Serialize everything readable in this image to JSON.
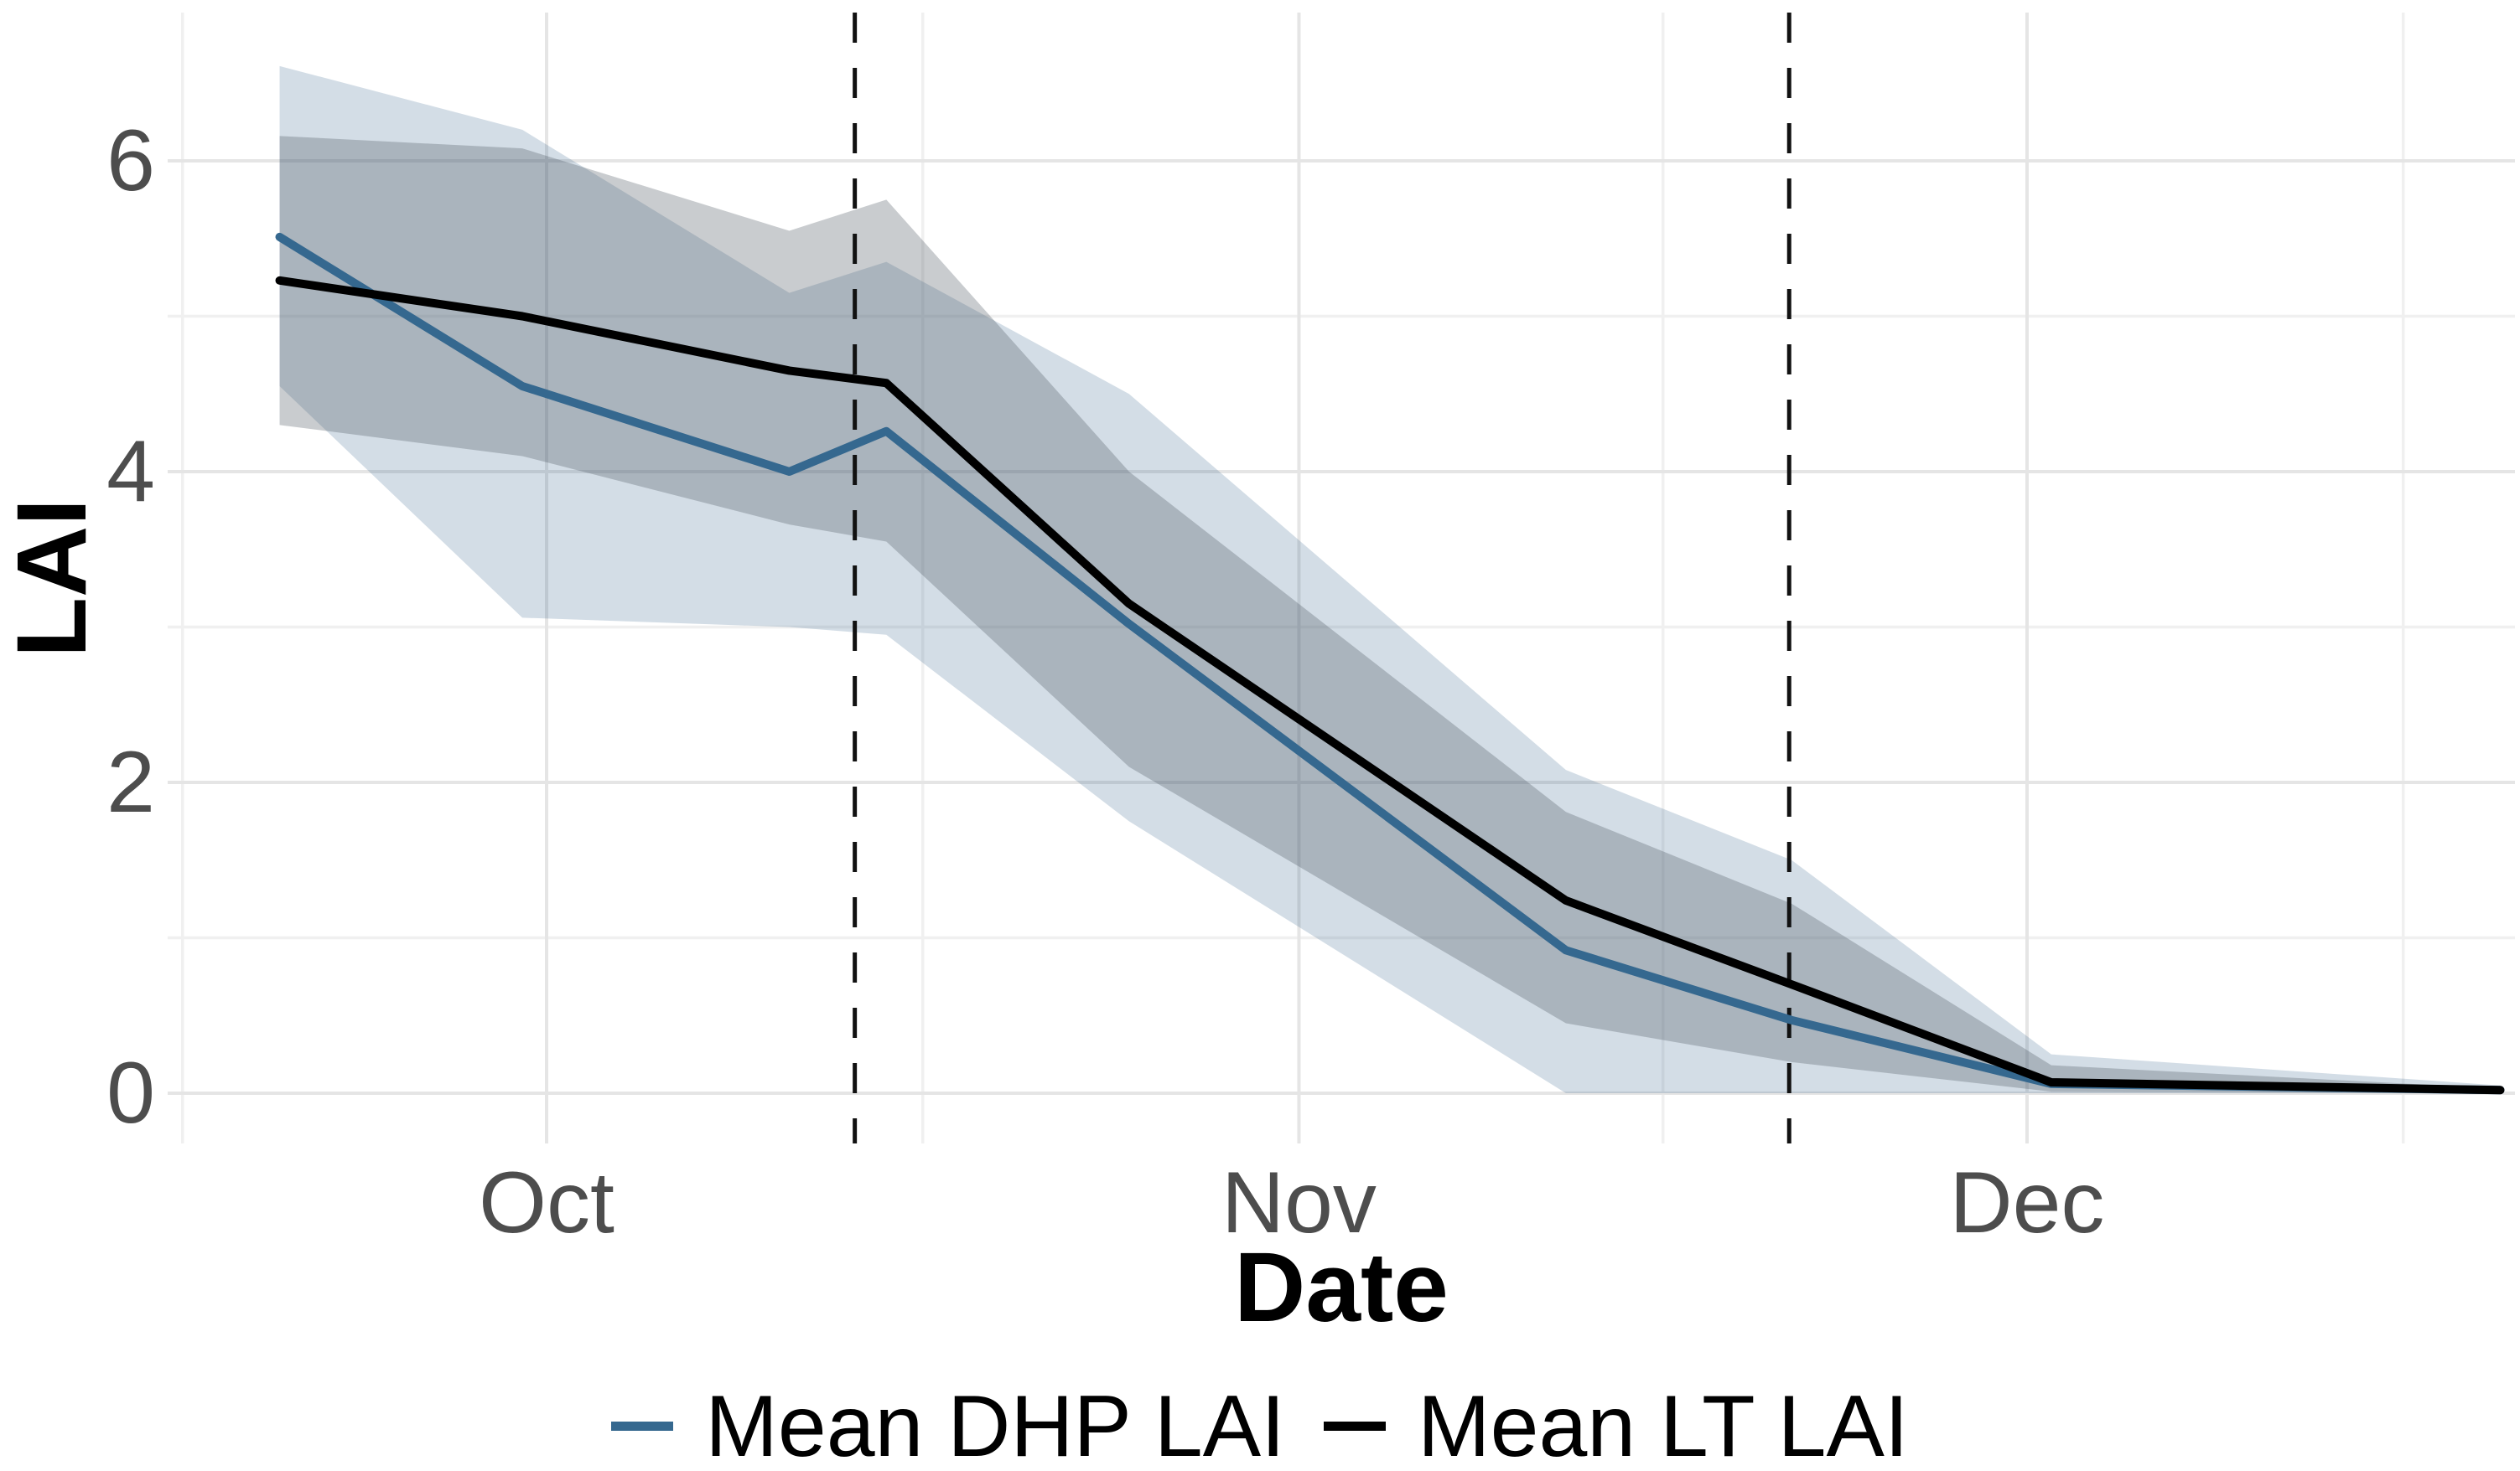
{
  "figure": {
    "background": "#FFFFFF"
  },
  "axes": {
    "tick_color": "#4D4D4D",
    "title_color": "#000000",
    "grid_major_color": "#E5E5E5",
    "grid_minor_color": "#F0F0F0",
    "dashed_line_color": "#111111"
  },
  "chart_data": {
    "type": "line",
    "title": "",
    "xlabel": "Date",
    "ylabel": "LAI",
    "x_axis": {
      "unit": "days relative to Oct 1",
      "ticks": [
        {
          "label": "Oct",
          "d": 0
        },
        {
          "label": "Nov",
          "d": 31
        },
        {
          "label": "Dec",
          "d": 61
        }
      ],
      "minor_d": [
        -15,
        15.5,
        46,
        76.5
      ],
      "range_d": [
        -15.6,
        81.1
      ]
    },
    "y_axis": {
      "ticks": [
        0,
        2,
        4,
        6
      ],
      "minor": [
        1,
        3,
        5
      ],
      "range": [
        -0.32,
        6.95
      ]
    },
    "grid": true,
    "legend_position": "bottom",
    "vertical_dashed_lines_d": [
      12.7,
      51.2
    ],
    "points_d": [
      -11,
      -1,
      10,
      14,
      24,
      42,
      51.3,
      62,
      80.5
    ],
    "series": [
      {
        "name": "Mean DHP LAI",
        "color": "#35688F",
        "band_color": "rgba(55,100,140,0.22)",
        "values": [
          5.51,
          4.55,
          4.0,
          4.26,
          3.02,
          0.92,
          0.47,
          0.06,
          0.02
        ],
        "band_lower": [
          4.55,
          3.06,
          3.0,
          2.95,
          1.75,
          0.0,
          0.0,
          0.0,
          0.0
        ],
        "band_upper": [
          6.61,
          6.2,
          5.15,
          5.35,
          4.5,
          2.08,
          1.5,
          0.25,
          0.05
        ]
      },
      {
        "name": "Mean LT LAI",
        "color": "#000000",
        "band_color": "rgba(75,85,95,0.30)",
        "values": [
          5.23,
          5.0,
          4.65,
          4.57,
          3.15,
          1.24,
          0.7,
          0.07,
          0.02
        ],
        "band_lower": [
          4.3,
          4.1,
          3.66,
          3.55,
          2.1,
          0.45,
          0.2,
          0.01,
          0.0
        ],
        "band_upper": [
          6.16,
          6.08,
          5.55,
          5.75,
          4.0,
          1.81,
          1.22,
          0.18,
          0.03
        ]
      }
    ]
  }
}
